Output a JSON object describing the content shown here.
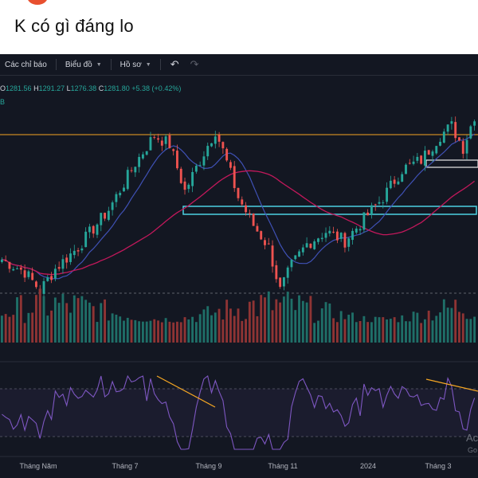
{
  "post": {
    "text": "K có gì đáng lo"
  },
  "toolbar": {
    "indicators_label": "Các chỉ báo",
    "chart_label": "Biểu đồ",
    "profile_label": "Hồ sơ",
    "undo_icon": "undo-icon",
    "redo_icon": "redo-icon"
  },
  "legend": {
    "o_label": "O",
    "o_value": "1281.56",
    "h_label": "H",
    "h_value": "1291.27",
    "l_label": "L",
    "l_value": "1276.38",
    "c_label": "C",
    "c_value": "1281.80",
    "change": "+5.38 (+0.42%)",
    "volume_suffix": "B"
  },
  "xaxis": [
    "Tháng Năm",
    "Tháng 7",
    "Tháng 9",
    "Tháng 11",
    "2024",
    "Tháng 3"
  ],
  "watermark": {
    "line1": "Ac",
    "line2": "Go"
  },
  "colors": {
    "up": "#26a69a",
    "down": "#ef5350",
    "ma_short": "#3f51b5",
    "ma_long": "#c2185b",
    "rsi": "#7e57c2",
    "resistance": "#f5a623",
    "zone": "#4dd0e1",
    "background": "#131722"
  },
  "chart_data": {
    "type": "candlestick",
    "price_path": [
      [
        0,
        1040
      ],
      [
        6,
        1020
      ],
      [
        10,
        990
      ],
      [
        14,
        1025
      ],
      [
        20,
        1060
      ],
      [
        28,
        1120
      ],
      [
        35,
        1195
      ],
      [
        40,
        1240
      ],
      [
        44,
        1225
      ],
      [
        48,
        1150
      ],
      [
        52,
        1200
      ],
      [
        56,
        1248
      ],
      [
        58,
        1215
      ],
      [
        62,
        1140
      ],
      [
        66,
        1095
      ],
      [
        70,
        1060
      ],
      [
        73,
        990
      ],
      [
        76,
        1030
      ],
      [
        80,
        1065
      ],
      [
        85,
        1085
      ],
      [
        90,
        1070
      ],
      [
        95,
        1105
      ],
      [
        100,
        1140
      ],
      [
        105,
        1185
      ],
      [
        110,
        1200
      ],
      [
        115,
        1240
      ],
      [
        118,
        1255
      ],
      [
        121,
        1220
      ],
      [
        124,
        1272
      ]
    ],
    "volume_range": [
      0.35,
      1.0
    ],
    "rsi_range": [
      30,
      80
    ],
    "annotations": [
      "resistance-line",
      "support-zone",
      "breakout-box",
      "divergence-line-1",
      "divergence-line-2"
    ]
  }
}
